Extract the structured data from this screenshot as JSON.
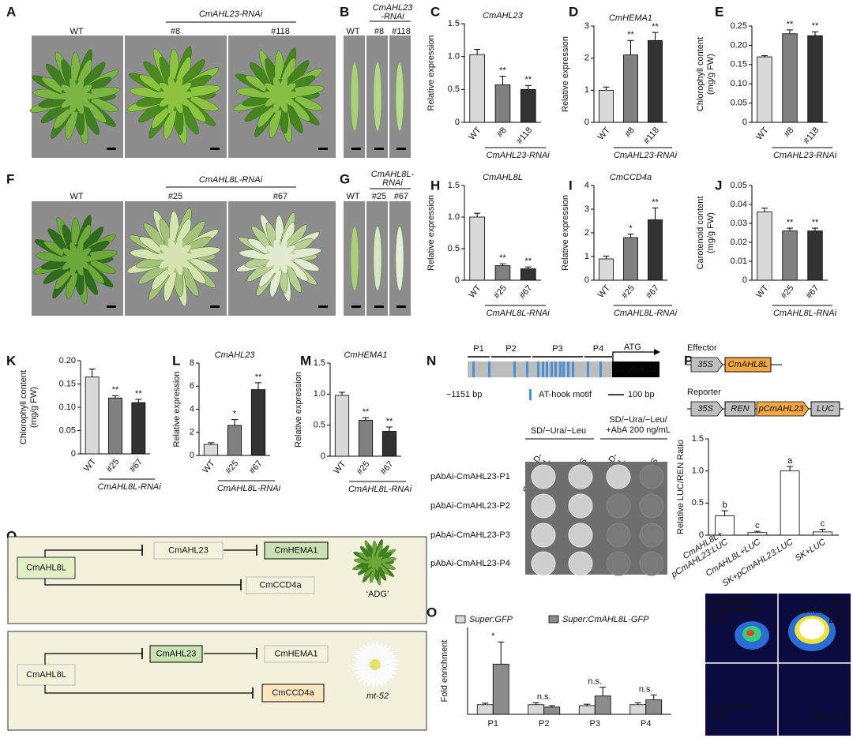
{
  "panel_letters": [
    "A",
    "B",
    "C",
    "D",
    "E",
    "F",
    "G",
    "H",
    "I",
    "J",
    "K",
    "L",
    "M",
    "N",
    "O",
    "P",
    "Q"
  ],
  "photo_panels": [
    {
      "group_label": [
        "CmAHL23-RNAi"
      ],
      "labels": [
        "WT",
        "#8",
        "#118"
      ]
    },
    {
      "group_label": [
        "CmAHL23",
        "-RNAi"
      ],
      "labels": [
        "WT",
        "#8",
        "#118"
      ]
    },
    {
      "group_label": [
        "CmAHL8L-RNAi"
      ],
      "labels": [
        "WT",
        "#25",
        "#67"
      ]
    },
    {
      "group_label": [
        "CmAHL8L-",
        "RNAi"
      ],
      "labels": [
        "WT",
        "#25",
        "#67"
      ]
    }
  ],
  "chart_data": [
    {
      "type": "bar",
      "title": "CmAHL23",
      "ylabel": [
        "Relative expression"
      ],
      "categories": [
        "WT",
        "#8",
        "#118"
      ],
      "values": [
        1.03,
        0.57,
        0.5
      ],
      "errors": [
        0.08,
        0.13,
        0.06
      ],
      "significance": [
        null,
        "**",
        "**"
      ],
      "colors": [
        "#d9d9d9",
        "#808080",
        "#333333"
      ],
      "group_label": "CmAHL23-RNAi",
      "ylim": [
        0,
        1.5
      ],
      "yticks": [
        0,
        0.5,
        {
          "value": 1,
          "label": "1.0"
        },
        1.5
      ]
    },
    {
      "type": "bar",
      "title": "CmHEMA1",
      "ylabel": [
        "Relative expression"
      ],
      "categories": [
        "WT",
        "#8",
        "#118"
      ],
      "values": [
        1.0,
        2.1,
        2.55
      ],
      "errors": [
        0.1,
        0.45,
        0.25
      ],
      "significance": [
        null,
        "**",
        "**"
      ],
      "colors": [
        "#d9d9d9",
        "#808080",
        "#333333"
      ],
      "group_label": "CmAHL23-RNAi",
      "ylim": [
        0,
        3
      ],
      "yticks": [
        0,
        1,
        2,
        3
      ]
    },
    {
      "type": "bar",
      "ylabel": [
        "Chlorophyll content",
        "(mg/g FW)"
      ],
      "categories": [
        "WT",
        "#8",
        "#118"
      ],
      "values": [
        0.17,
        0.23,
        0.225
      ],
      "errors": [
        0.003,
        0.01,
        0.01
      ],
      "significance": [
        null,
        "**",
        "**"
      ],
      "colors": [
        "#d9d9d9",
        "#808080",
        "#333333"
      ],
      "group_label": "CmAHL23-RNAi",
      "ylim": [
        0,
        0.25
      ],
      "yticks": [
        0,
        0.05,
        {
          "value": 0.1,
          "label": "0.10"
        },
        0.15,
        {
          "value": 0.2,
          "label": "0.20"
        },
        0.25
      ]
    },
    {
      "type": "bar",
      "title": "CmAHL8L",
      "ylabel": [
        "Relative expression"
      ],
      "categories": [
        "WT",
        "#25",
        "#67"
      ],
      "values": [
        1.0,
        0.23,
        0.18
      ],
      "errors": [
        0.06,
        0.03,
        0.03
      ],
      "significance": [
        null,
        "**",
        "**"
      ],
      "colors": [
        "#d9d9d9",
        "#808080",
        "#333333"
      ],
      "group_label": "CmAHL8L-RNAi",
      "ylim": [
        0,
        1.5
      ],
      "yticks": [
        0,
        0.5,
        {
          "value": 1,
          "label": "1.0"
        },
        1.5
      ]
    },
    {
      "type": "bar",
      "title": "CmCCD4a",
      "ylabel": [
        "Relative expression"
      ],
      "categories": [
        "WT",
        "#25",
        "#67"
      ],
      "values": [
        0.9,
        1.8,
        2.55
      ],
      "errors": [
        0.12,
        0.15,
        0.5
      ],
      "significance": [
        null,
        "*",
        "**"
      ],
      "colors": [
        "#d9d9d9",
        "#808080",
        "#333333"
      ],
      "group_label": "CmAHL8L-RNAi",
      "ylim": [
        0,
        4
      ],
      "yticks": [
        0,
        1,
        2,
        3,
        4
      ]
    },
    {
      "type": "bar",
      "ylabel": [
        "Carotenoid content",
        "(mg/g FW)"
      ],
      "categories": [
        "WT",
        "#25",
        "#67"
      ],
      "values": [
        0.036,
        0.026,
        0.026
      ],
      "errors": [
        0.002,
        0.0015,
        0.0015
      ],
      "significance": [
        null,
        "**",
        "**"
      ],
      "colors": [
        "#d9d9d9",
        "#808080",
        "#333333"
      ],
      "group_label": "CmAHL8L-RNAi",
      "ylim": [
        0,
        0.05
      ],
      "yticks": [
        0,
        0.01,
        0.02,
        0.03,
        0.04,
        0.05
      ]
    },
    {
      "type": "bar",
      "ylabel": [
        "Chlorophyll content",
        "(mg/g FW)"
      ],
      "categories": [
        "WT",
        "#25",
        "#67"
      ],
      "values": [
        0.165,
        0.12,
        0.11
      ],
      "errors": [
        0.017,
        0.005,
        0.007
      ],
      "significance": [
        null,
        "**",
        "**"
      ],
      "colors": [
        "#d9d9d9",
        "#808080",
        "#333333"
      ],
      "group_label": "CmAHL8L-RNAi",
      "ylim": [
        0,
        0.2
      ],
      "yticks": [
        0,
        0.05,
        {
          "value": 0.1,
          "label": "0.10"
        },
        0.15,
        {
          "value": 0.2,
          "label": "0.20"
        }
      ]
    },
    {
      "type": "bar",
      "title": "CmAHL23",
      "ylabel": [
        "Relative expression"
      ],
      "categories": [
        "WT",
        "#25",
        "#67"
      ],
      "values": [
        0.95,
        2.6,
        5.7
      ],
      "errors": [
        0.15,
        0.5,
        0.6
      ],
      "significance": [
        null,
        "*",
        "**"
      ],
      "colors": [
        "#d9d9d9",
        "#808080",
        "#333333"
      ],
      "group_label": "CmAHL8L-RNAi",
      "ylim": [
        0,
        8
      ],
      "yticks": [
        0,
        2,
        4,
        6,
        8
      ]
    },
    {
      "type": "bar",
      "title": "CmHEMA1",
      "ylabel": [
        "Relative expression"
      ],
      "categories": [
        "WT",
        "#25",
        "#67"
      ],
      "values": [
        0.98,
        0.58,
        0.4
      ],
      "errors": [
        0.05,
        0.04,
        0.07
      ],
      "significance": [
        null,
        "**",
        "**"
      ],
      "colors": [
        "#d9d9d9",
        "#808080",
        "#333333"
      ],
      "group_label": "CmAHL8L-RNAi",
      "ylim": [
        0,
        1.5
      ],
      "yticks": [
        0,
        0.5,
        {
          "value": 1,
          "label": "1.0"
        },
        1.5
      ]
    },
    {
      "type": "grouped_bar",
      "ylabel": [
        "Fold enrichment"
      ],
      "categories": [
        "P1",
        "P2",
        "P3",
        "P4"
      ],
      "series": [
        {
          "name": "Super:GFP",
          "color": "#d9d9d9",
          "values": [
            1.0,
            1.0,
            0.9,
            1.0
          ],
          "errors": [
            0.15,
            0.2,
            0.15,
            0.2
          ]
        },
        {
          "name": "Super:CmAHL8L-GFP",
          "color": "#8c8c8c",
          "values": [
            5.2,
            0.75,
            1.9,
            1.5
          ],
          "errors": [
            2.3,
            0.15,
            0.9,
            0.5
          ]
        }
      ],
      "significance": [
        "*",
        "n.s.",
        "n.s.",
        "n.s."
      ],
      "ylim": [
        0,
        9
      ]
    },
    {
      "type": "bar",
      "ylabel": [
        "Relative LUC/REN Ratio"
      ],
      "categories": [
        [
          "CmAHL8L+",
          "pCmAHL23:LUC"
        ],
        "CmAHL8L+LUC",
        "SK+pCmAHL23:LUC",
        "SK+LUC"
      ],
      "values": [
        0.3,
        0.04,
        1.0,
        0.05
      ],
      "errors": [
        0.08,
        0.02,
        0.07,
        0.04
      ],
      "significance": [
        "b",
        "c",
        "a",
        "c"
      ],
      "colors": [
        "#ffffff",
        "#ffffff",
        "#ffffff",
        "#ffffff"
      ],
      "ylim": [
        0,
        1.5
      ],
      "yticks": [
        0,
        0.5,
        {
          "value": 1,
          "label": "1.0"
        },
        1.5
      ]
    }
  ],
  "promoter": {
    "fragments": [
      "P1",
      "P2",
      "P3",
      "P4"
    ],
    "start_codon": "ATG",
    "gene": "CmAHL23",
    "position": "−1151 bp",
    "motif_legend": "AT-hook motif",
    "scale_bar": "100 bp"
  },
  "y1h": {
    "media": [
      [
        "SD/−Ura/−Leu"
      ],
      [
        "SD/−Ura/−Leu/",
        "+AbA 200 ng/mL"
      ]
    ],
    "columns": [
      [
        "AD-",
        "CmAHL8L"
      ],
      [
        "AD-GUS"
      ],
      [
        "AD-",
        "CmAHL8L"
      ],
      [
        "AD-GUS"
      ]
    ],
    "rows": [
      "pAbAi-CmAHL23-P1",
      "pAbAi-CmAHL23-P2",
      "pAbAi-CmAHL23-P3",
      "pAbAi-CmAHL23-P4"
    ]
  },
  "constructs": {
    "effector_label": "Effector",
    "effector": [
      "35S",
      "CmAHL8L"
    ],
    "reporter_label": "Reporter",
    "reporter": [
      "35S",
      "REN",
      "pCmAHL23",
      "LUC"
    ]
  },
  "luc_image_labels": [
    [
      "CmAHL8L+",
      "pCmAHL23:",
      "LUC"
    ],
    [
      "SK+",
      "pCmAHL23:",
      "LUC"
    ],
    [
      "CmAHL8L+",
      "LUC"
    ],
    [
      "SK+LUC"
    ]
  ],
  "model": [
    {
      "nodes": [
        "CmAHL8L",
        "CmAHL23",
        "CmHEMA1",
        "CmCCD4a"
      ],
      "phenotype": "‘ADG’"
    },
    {
      "nodes": [
        "CmAHL8L",
        "CmAHL23",
        "CmHEMA1",
        "CmCCD4a"
      ],
      "phenotype": "mt-52"
    }
  ]
}
